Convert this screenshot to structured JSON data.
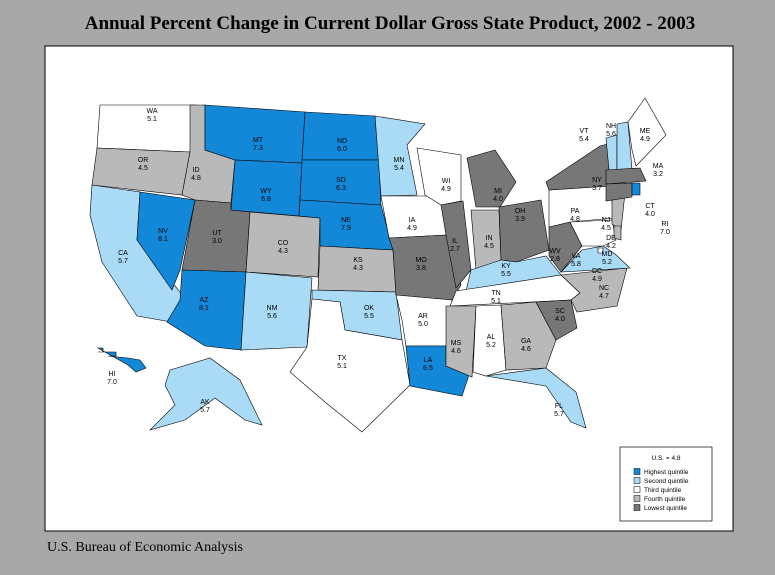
{
  "title": "Annual Percent Change in Current Dollar Gross State Product, 2002 - 2003",
  "source": "U.S. Bureau of Economic Analysis",
  "legend": {
    "note": "U.S. = 4.8",
    "items": [
      {
        "label": "Highest quintile",
        "color": "#1388d8"
      },
      {
        "label": "Second quintile",
        "color": "#a9daf6"
      },
      {
        "label": "Third quintile",
        "color": "#ffffff"
      },
      {
        "label": "Fourth quintile",
        "color": "#b9b9b9"
      },
      {
        "label": "Lowest quintile",
        "color": "#777777"
      }
    ]
  },
  "states": [
    {
      "abbr": "WA",
      "value": "5.1",
      "color": "#ffffff"
    },
    {
      "abbr": "OR",
      "value": "4.5",
      "color": "#b9b9b9"
    },
    {
      "abbr": "CA",
      "value": "5.7",
      "color": "#a9daf6"
    },
    {
      "abbr": "NV",
      "value": "8.1",
      "color": "#1388d8"
    },
    {
      "abbr": "ID",
      "value": "4.8",
      "color": "#b9b9b9"
    },
    {
      "abbr": "MT",
      "value": "7.3",
      "color": "#1388d8"
    },
    {
      "abbr": "WY",
      "value": "6.8",
      "color": "#1388d8"
    },
    {
      "abbr": "UT",
      "value": "3.0",
      "color": "#777777"
    },
    {
      "abbr": "CO",
      "value": "4.3",
      "color": "#b9b9b9"
    },
    {
      "abbr": "AZ",
      "value": "8.1",
      "color": "#1388d8"
    },
    {
      "abbr": "NM",
      "value": "5.6",
      "color": "#a9daf6"
    },
    {
      "abbr": "ND",
      "value": "6.0",
      "color": "#1388d8"
    },
    {
      "abbr": "SD",
      "value": "6.3",
      "color": "#1388d8"
    },
    {
      "abbr": "NE",
      "value": "7.9",
      "color": "#1388d8"
    },
    {
      "abbr": "KS",
      "value": "4.3",
      "color": "#b9b9b9"
    },
    {
      "abbr": "OK",
      "value": "5.5",
      "color": "#a9daf6"
    },
    {
      "abbr": "TX",
      "value": "5.1",
      "color": "#ffffff"
    },
    {
      "abbr": "MN",
      "value": "5.4",
      "color": "#a9daf6"
    },
    {
      "abbr": "IA",
      "value": "4.9",
      "color": "#ffffff"
    },
    {
      "abbr": "MO",
      "value": "3.8",
      "color": "#777777"
    },
    {
      "abbr": "AR",
      "value": "5.0",
      "color": "#ffffff"
    },
    {
      "abbr": "LA",
      "value": "6.5",
      "color": "#1388d8"
    },
    {
      "abbr": "WI",
      "value": "4.9",
      "color": "#ffffff"
    },
    {
      "abbr": "IL",
      "value": "2.7",
      "color": "#777777"
    },
    {
      "abbr": "MI",
      "value": "4.0",
      "color": "#777777"
    },
    {
      "abbr": "IN",
      "value": "4.5",
      "color": "#b9b9b9"
    },
    {
      "abbr": "OH",
      "value": "3.9",
      "color": "#777777"
    },
    {
      "abbr": "KY",
      "value": "5.5",
      "color": "#a9daf6"
    },
    {
      "abbr": "TN",
      "value": "5.1",
      "color": "#ffffff"
    },
    {
      "abbr": "MS",
      "value": "4.6",
      "color": "#b9b9b9"
    },
    {
      "abbr": "AL",
      "value": "5.2",
      "color": "#ffffff"
    },
    {
      "abbr": "GA",
      "value": "4.6",
      "color": "#b9b9b9"
    },
    {
      "abbr": "FL",
      "value": "5.7",
      "color": "#a9daf6"
    },
    {
      "abbr": "SC",
      "value": "4.0",
      "color": "#777777"
    },
    {
      "abbr": "NC",
      "value": "4.7",
      "color": "#b9b9b9"
    },
    {
      "abbr": "VA",
      "value": "5.8",
      "color": "#a9daf6"
    },
    {
      "abbr": "WV",
      "value": "2.8",
      "color": "#777777"
    },
    {
      "abbr": "MD",
      "value": "5.2",
      "color": "#ffffff"
    },
    {
      "abbr": "DC",
      "value": "4.9",
      "color": "#ffffff"
    },
    {
      "abbr": "PA",
      "value": "4.8",
      "color": "#ffffff"
    },
    {
      "abbr": "NY",
      "value": "3.7",
      "color": "#777777"
    },
    {
      "abbr": "NJ",
      "value": "4.5",
      "color": "#b9b9b9"
    },
    {
      "abbr": "DE",
      "value": "4.2",
      "color": "#b9b9b9"
    },
    {
      "abbr": "VT",
      "value": "5.4",
      "color": "#a9daf6"
    },
    {
      "abbr": "NH",
      "value": "5.6",
      "color": "#a9daf6"
    },
    {
      "abbr": "ME",
      "value": "4.9",
      "color": "#ffffff"
    },
    {
      "abbr": "MA",
      "value": "3.2",
      "color": "#777777"
    },
    {
      "abbr": "CT",
      "value": "4.0",
      "color": "#777777"
    },
    {
      "abbr": "RI",
      "value": "7.0",
      "color": "#1388d8"
    },
    {
      "abbr": "AK",
      "value": "5.7",
      "color": "#a9daf6"
    },
    {
      "abbr": "HI",
      "value": "7.0",
      "color": "#1388d8"
    }
  ]
}
